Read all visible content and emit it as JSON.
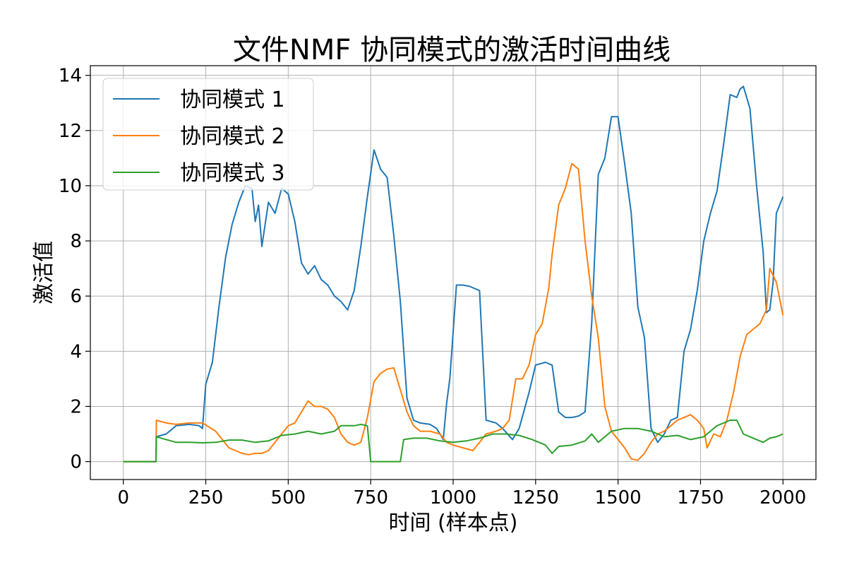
{
  "chart_data": {
    "type": "line",
    "title": "文件NMF 协同模式的激活时间曲线",
    "xlabel": "时间 (样本点)",
    "ylabel": "激活值",
    "xlim": [
      -100,
      2100
    ],
    "ylim": [
      -0.65,
      14.35
    ],
    "xticks": [
      0,
      250,
      500,
      750,
      1000,
      1250,
      1500,
      1750,
      2000
    ],
    "yticks": [
      0,
      2,
      4,
      6,
      8,
      10,
      12,
      14
    ],
    "grid": true,
    "legend_position": "top-left",
    "series": [
      {
        "name": "协同模式 1",
        "color": "#1f77b4",
        "points": [
          [
            0,
            0
          ],
          [
            99,
            0
          ],
          [
            100,
            0.9
          ],
          [
            130,
            1.0
          ],
          [
            160,
            1.3
          ],
          [
            200,
            1.35
          ],
          [
            230,
            1.3
          ],
          [
            240,
            1.2
          ],
          [
            250,
            2.8
          ],
          [
            270,
            3.6
          ],
          [
            290,
            5.6
          ],
          [
            310,
            7.4
          ],
          [
            330,
            8.6
          ],
          [
            350,
            9.4
          ],
          [
            370,
            10.0
          ],
          [
            390,
            9.9
          ],
          [
            400,
            8.7
          ],
          [
            410,
            9.3
          ],
          [
            420,
            7.8
          ],
          [
            440,
            9.4
          ],
          [
            460,
            9.0
          ],
          [
            480,
            9.9
          ],
          [
            500,
            9.7
          ],
          [
            520,
            8.7
          ],
          [
            540,
            7.2
          ],
          [
            560,
            6.8
          ],
          [
            580,
            7.1
          ],
          [
            600,
            6.6
          ],
          [
            620,
            6.4
          ],
          [
            640,
            6.0
          ],
          [
            660,
            5.8
          ],
          [
            680,
            5.5
          ],
          [
            700,
            6.2
          ],
          [
            720,
            7.8
          ],
          [
            740,
            9.6
          ],
          [
            760,
            11.3
          ],
          [
            780,
            10.6
          ],
          [
            800,
            10.3
          ],
          [
            820,
            8.2
          ],
          [
            840,
            5.8
          ],
          [
            860,
            2.3
          ],
          [
            880,
            1.5
          ],
          [
            900,
            1.4
          ],
          [
            930,
            1.35
          ],
          [
            950,
            1.2
          ],
          [
            970,
            0.8
          ],
          [
            980,
            2.1
          ],
          [
            990,
            3.0
          ],
          [
            1010,
            6.4
          ],
          [
            1030,
            6.4
          ],
          [
            1050,
            6.35
          ],
          [
            1080,
            6.2
          ],
          [
            1100,
            1.5
          ],
          [
            1130,
            1.4
          ],
          [
            1150,
            1.2
          ],
          [
            1180,
            0.8
          ],
          [
            1200,
            1.2
          ],
          [
            1230,
            2.5
          ],
          [
            1250,
            3.5
          ],
          [
            1280,
            3.6
          ],
          [
            1300,
            3.5
          ],
          [
            1320,
            1.8
          ],
          [
            1340,
            1.6
          ],
          [
            1360,
            1.6
          ],
          [
            1380,
            1.65
          ],
          [
            1400,
            1.8
          ],
          [
            1420,
            5.0
          ],
          [
            1440,
            10.4
          ],
          [
            1460,
            11.0
          ],
          [
            1480,
            12.5
          ],
          [
            1500,
            12.5
          ],
          [
            1520,
            10.8
          ],
          [
            1540,
            9.0
          ],
          [
            1560,
            5.6
          ],
          [
            1580,
            4.5
          ],
          [
            1600,
            1.2
          ],
          [
            1620,
            0.7
          ],
          [
            1640,
            1.0
          ],
          [
            1660,
            1.5
          ],
          [
            1680,
            1.6
          ],
          [
            1700,
            4.0
          ],
          [
            1720,
            4.8
          ],
          [
            1740,
            6.2
          ],
          [
            1760,
            8.0
          ],
          [
            1780,
            9.0
          ],
          [
            1800,
            9.8
          ],
          [
            1820,
            11.5
          ],
          [
            1840,
            13.3
          ],
          [
            1860,
            13.2
          ],
          [
            1870,
            13.5
          ],
          [
            1880,
            13.6
          ],
          [
            1900,
            12.8
          ],
          [
            1920,
            10.0
          ],
          [
            1940,
            7.6
          ],
          [
            1950,
            5.4
          ],
          [
            1960,
            5.5
          ],
          [
            1970,
            6.5
          ],
          [
            1980,
            9.0
          ],
          [
            1990,
            9.3
          ],
          [
            2000,
            9.6
          ]
        ]
      },
      {
        "name": "协同模式 2",
        "color": "#ff7f0e",
        "points": [
          [
            0,
            0
          ],
          [
            99,
            0
          ],
          [
            100,
            1.5
          ],
          [
            130,
            1.4
          ],
          [
            160,
            1.35
          ],
          [
            200,
            1.4
          ],
          [
            240,
            1.4
          ],
          [
            280,
            1.1
          ],
          [
            300,
            0.8
          ],
          [
            320,
            0.5
          ],
          [
            340,
            0.4
          ],
          [
            360,
            0.3
          ],
          [
            380,
            0.25
          ],
          [
            400,
            0.3
          ],
          [
            420,
            0.3
          ],
          [
            440,
            0.4
          ],
          [
            460,
            0.7
          ],
          [
            480,
            1.0
          ],
          [
            500,
            1.3
          ],
          [
            520,
            1.4
          ],
          [
            540,
            1.8
          ],
          [
            560,
            2.2
          ],
          [
            580,
            2.0
          ],
          [
            600,
            2.0
          ],
          [
            620,
            1.9
          ],
          [
            640,
            1.6
          ],
          [
            660,
            1.0
          ],
          [
            680,
            0.7
          ],
          [
            700,
            0.6
          ],
          [
            720,
            0.7
          ],
          [
            740,
            1.6
          ],
          [
            760,
            2.9
          ],
          [
            780,
            3.2
          ],
          [
            800,
            3.35
          ],
          [
            820,
            3.4
          ],
          [
            840,
            2.6
          ],
          [
            860,
            1.8
          ],
          [
            880,
            1.3
          ],
          [
            900,
            1.1
          ],
          [
            930,
            1.1
          ],
          [
            960,
            1.0
          ],
          [
            980,
            0.7
          ],
          [
            1000,
            0.6
          ],
          [
            1030,
            0.5
          ],
          [
            1060,
            0.4
          ],
          [
            1080,
            0.7
          ],
          [
            1100,
            1.0
          ],
          [
            1130,
            1.1
          ],
          [
            1150,
            1.2
          ],
          [
            1170,
            1.5
          ],
          [
            1190,
            3.0
          ],
          [
            1210,
            3.0
          ],
          [
            1230,
            3.5
          ],
          [
            1250,
            4.6
          ],
          [
            1270,
            5.0
          ],
          [
            1290,
            6.3
          ],
          [
            1300,
            7.5
          ],
          [
            1320,
            9.3
          ],
          [
            1340,
            9.9
          ],
          [
            1360,
            10.8
          ],
          [
            1380,
            10.6
          ],
          [
            1400,
            8.0
          ],
          [
            1420,
            6.0
          ],
          [
            1440,
            4.5
          ],
          [
            1460,
            2.0
          ],
          [
            1480,
            1.1
          ],
          [
            1500,
            0.8
          ],
          [
            1520,
            0.5
          ],
          [
            1540,
            0.1
          ],
          [
            1560,
            0.05
          ],
          [
            1580,
            0.3
          ],
          [
            1600,
            0.7
          ],
          [
            1620,
            1.0
          ],
          [
            1640,
            1.1
          ],
          [
            1660,
            1.3
          ],
          [
            1680,
            1.5
          ],
          [
            1700,
            1.6
          ],
          [
            1720,
            1.7
          ],
          [
            1740,
            1.5
          ],
          [
            1760,
            1.2
          ],
          [
            1770,
            0.5
          ],
          [
            1790,
            1.0
          ],
          [
            1810,
            0.9
          ],
          [
            1830,
            1.5
          ],
          [
            1850,
            2.5
          ],
          [
            1870,
            3.8
          ],
          [
            1890,
            4.6
          ],
          [
            1910,
            4.8
          ],
          [
            1930,
            5.0
          ],
          [
            1950,
            5.5
          ],
          [
            1960,
            7.0
          ],
          [
            1980,
            6.5
          ],
          [
            2000,
            5.3
          ]
        ]
      },
      {
        "name": "协同模式 3",
        "color": "#2ca02c",
        "points": [
          [
            0,
            0
          ],
          [
            99,
            0
          ],
          [
            100,
            0.9
          ],
          [
            130,
            0.8
          ],
          [
            160,
            0.7
          ],
          [
            200,
            0.7
          ],
          [
            240,
            0.68
          ],
          [
            280,
            0.7
          ],
          [
            320,
            0.78
          ],
          [
            360,
            0.78
          ],
          [
            400,
            0.7
          ],
          [
            440,
            0.75
          ],
          [
            480,
            0.95
          ],
          [
            520,
            1.0
          ],
          [
            560,
            1.1
          ],
          [
            600,
            1.0
          ],
          [
            640,
            1.1
          ],
          [
            660,
            1.3
          ],
          [
            700,
            1.3
          ],
          [
            720,
            1.35
          ],
          [
            740,
            1.3
          ],
          [
            750,
            0
          ],
          [
            840,
            0
          ],
          [
            850,
            0.8
          ],
          [
            880,
            0.85
          ],
          [
            920,
            0.85
          ],
          [
            960,
            0.75
          ],
          [
            1000,
            0.7
          ],
          [
            1040,
            0.75
          ],
          [
            1080,
            0.85
          ],
          [
            1120,
            1.0
          ],
          [
            1160,
            1.0
          ],
          [
            1200,
            0.95
          ],
          [
            1240,
            0.8
          ],
          [
            1280,
            0.6
          ],
          [
            1300,
            0.3
          ],
          [
            1320,
            0.55
          ],
          [
            1360,
            0.6
          ],
          [
            1400,
            0.75
          ],
          [
            1420,
            1.0
          ],
          [
            1440,
            0.7
          ],
          [
            1480,
            1.1
          ],
          [
            1520,
            1.2
          ],
          [
            1560,
            1.2
          ],
          [
            1600,
            1.1
          ],
          [
            1640,
            0.9
          ],
          [
            1680,
            0.95
          ],
          [
            1720,
            0.8
          ],
          [
            1760,
            0.9
          ],
          [
            1800,
            1.3
          ],
          [
            1840,
            1.5
          ],
          [
            1860,
            1.5
          ],
          [
            1880,
            1.0
          ],
          [
            1900,
            0.9
          ],
          [
            1920,
            0.8
          ],
          [
            1940,
            0.7
          ],
          [
            1960,
            0.85
          ],
          [
            1980,
            0.9
          ],
          [
            2000,
            1.0
          ]
        ]
      }
    ]
  }
}
